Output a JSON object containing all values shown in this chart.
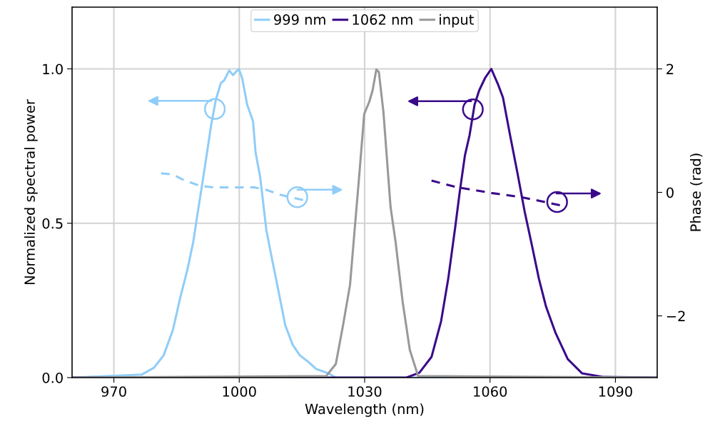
{
  "chart_data": {
    "type": "line",
    "xlabel": "Wavelength (nm)",
    "ylabel": "Normalized spectral power",
    "y2label": "Phase (rad)",
    "xlim": [
      960,
      1100
    ],
    "xticks": [
      970,
      1000,
      1030,
      1060,
      1090
    ],
    "ylim": [
      0,
      1.2
    ],
    "yticks": [
      {
        "value": 0,
        "label": "0.0"
      },
      {
        "value": 0.5,
        "label": "0.5"
      },
      {
        "value": 1.0,
        "label": "1.0"
      }
    ],
    "y2lim": [
      -3,
      3
    ],
    "y2ticks": [
      -2,
      0,
      2
    ],
    "grid": true,
    "legend": "top",
    "line_style": "solid",
    "marker": "none",
    "series": [
      {
        "name": "999 nm",
        "color": "#90cdf8",
        "x": [
          960,
          976.7,
          979.6,
          981.9,
          984.1,
          985.9,
          987.6,
          989.0,
          989.9,
          991.0,
          992.2,
          993.3,
          994.4,
          995.6,
          996.4,
          997.6,
          998.5,
          999.9,
          1000.7,
          1001.9,
          1003.3,
          1003.9,
          1005.0,
          1006.5,
          1007.6,
          1008.8,
          1009.9,
          1011.0,
          1012.8,
          1014.5,
          1016.7,
          1018.4,
          1021.3,
          1023.1,
          1100
        ],
        "values": [
          0,
          0.01,
          0.032,
          0.072,
          0.153,
          0.26,
          0.35,
          0.44,
          0.52,
          0.615,
          0.72,
          0.82,
          0.9,
          0.954,
          0.963,
          0.995,
          0.98,
          1.0,
          0.97,
          0.884,
          0.83,
          0.73,
          0.65,
          0.477,
          0.4,
          0.32,
          0.245,
          0.17,
          0.106,
          0.072,
          0.049,
          0.028,
          0.014,
          0,
          0
        ]
      },
      {
        "name": "1062 nm",
        "color": "#3a0a8a",
        "x": [
          960,
          1040,
          1043.1,
          1046.0,
          1048.3,
          1050.0,
          1051.7,
          1052.8,
          1054.0,
          1055.1,
          1056.3,
          1057.4,
          1058.8,
          1060.3,
          1062.0,
          1063.1,
          1064.8,
          1066.6,
          1068.3,
          1070.0,
          1071.7,
          1073.4,
          1075.7,
          1078.6,
          1082.0,
          1087.2,
          1100
        ],
        "values": [
          0,
          0,
          0.016,
          0.067,
          0.183,
          0.32,
          0.49,
          0.606,
          0.72,
          0.785,
          0.884,
          0.93,
          0.97,
          1.0,
          0.947,
          0.907,
          0.785,
          0.66,
          0.537,
          0.43,
          0.32,
          0.23,
          0.144,
          0.06,
          0.014,
          0.002,
          0
        ]
      },
      {
        "name": "input",
        "color": "#999999",
        "x": [
          960,
          1020.8,
          1023.1,
          1024.8,
          1026.5,
          1027.6,
          1028.8,
          1029.9,
          1031.1,
          1031.9,
          1032.8,
          1033.4,
          1034.5,
          1036.2,
          1037.4,
          1039.1,
          1040.8,
          1042.8,
          1100
        ],
        "values": [
          0,
          0.005,
          0.044,
          0.167,
          0.3,
          0.477,
          0.67,
          0.854,
          0.893,
          0.93,
          0.998,
          0.99,
          0.86,
          0.553,
          0.44,
          0.245,
          0.09,
          0.005,
          0
        ]
      },
      {
        "color": "#90cdf8",
        "axis": "y2",
        "line_style": "dashed",
        "x": [
          981.3,
          984.1,
          986.4,
          990.4,
          993.9,
          999.6,
          1003.6,
          1006.5,
          1009.9,
          1016.2
        ],
        "values": [
          0.31,
          0.29,
          0.21,
          0.11,
          0.08,
          0.08,
          0.08,
          0.04,
          -0.04,
          -0.14
        ]
      },
      {
        "color": "#3a0a8a",
        "axis": "y2",
        "line_style": "dashed",
        "x": [
          1046.0,
          1052.3,
          1060.3,
          1067.7,
          1076.9
        ],
        "values": [
          0.19,
          0.08,
          -0.01,
          -0.08,
          -0.21
        ]
      }
    ]
  }
}
